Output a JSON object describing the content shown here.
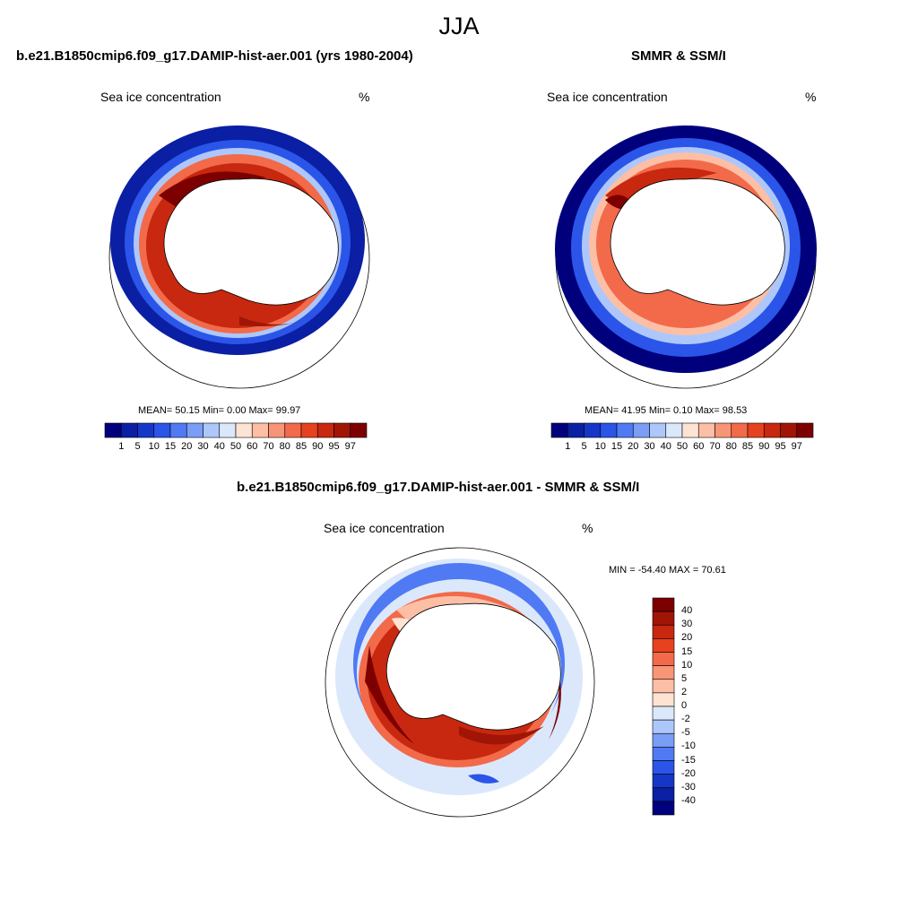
{
  "figure": {
    "title": "JJA"
  },
  "panels": {
    "model": {
      "title": "b.e21.B1850cmip6.f09_g17.DAMIP-hist-aer.001 (yrs 1980-2004)",
      "field_label": "Sea ice concentration",
      "units": "%",
      "stats": "MEAN=  50.15  Min=   0.00  Max=  99.97"
    },
    "obs": {
      "title": "SMMR & SSM/I",
      "field_label": "Sea ice concentration",
      "units": "%",
      "stats": "MEAN=  41.95  Min=   0.10  Max=  98.53"
    },
    "diff": {
      "title": "b.e21.B1850cmip6.f09_g17.DAMIP-hist-aer.001 - SMMR & SSM/I",
      "field_label": "Sea ice concentration",
      "units": "%",
      "stats": "MIN = -54.40 MAX =  70.61"
    }
  },
  "colorbars": {
    "concentration": {
      "ticks": [
        "1",
        "5",
        "10",
        "15",
        "20",
        "30",
        "40",
        "50",
        "60",
        "70",
        "80",
        "85",
        "90",
        "95",
        "97"
      ],
      "colors": [
        "#00007d",
        "#0a1fa3",
        "#1537c7",
        "#2a55e8",
        "#4f7af3",
        "#7a9df6",
        "#aec7fa",
        "#dbe8fc",
        "#fde3d4",
        "#fcbfa5",
        "#f89576",
        "#f26a4a",
        "#e6421f",
        "#c7280f",
        "#a01506",
        "#7d0000"
      ]
    },
    "difference": {
      "ticks": [
        "40",
        "30",
        "20",
        "15",
        "10",
        "5",
        "2",
        "0",
        "-2",
        "-5",
        "-10",
        "-15",
        "-20",
        "-30",
        "-40"
      ],
      "colors": [
        "#7d0000",
        "#a01506",
        "#c7280f",
        "#e6421f",
        "#f26a4a",
        "#f89576",
        "#fcbfa5",
        "#fde3d4",
        "#dbe8fc",
        "#aec7fa",
        "#7a9df6",
        "#4f7af3",
        "#2a55e8",
        "#1537c7",
        "#0a1fa3",
        "#00007d"
      ]
    }
  }
}
